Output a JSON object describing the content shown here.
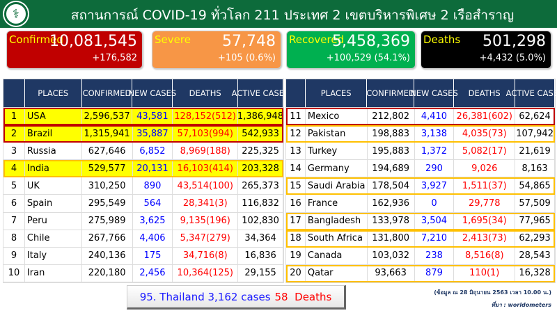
{
  "header": {
    "title": "สถานการณ์ COVID-19 ทั่วโลก 211 ประเทศ 2 เขตบริหารพิเศษ 2 เรือสำราญ",
    "logo_icon": "ministry-of-public-health-logo"
  },
  "cards": [
    {
      "label": "Confirmed",
      "value": "10,081,545",
      "change": "+176,582",
      "color": "#c00000"
    },
    {
      "label": "Severe",
      "value": "57,748",
      "change": "+105 (0.6%)",
      "color": "#f79646"
    },
    {
      "label": "Recovered",
      "value": "5,458,369",
      "change": "+100,529 (54.1%)",
      "color": "#00b050"
    },
    {
      "label": "Deaths",
      "value": "501,298",
      "change": "+4,432 (5.0%)",
      "color": "#000000"
    }
  ],
  "columns": [
    "PLACES",
    "CONFIRMED",
    "NEW CASES",
    "DEATHS",
    "ACTIVE CASES"
  ],
  "left_rows": [
    [
      "1",
      "USA",
      "2,596,537",
      "43,581",
      "128,152(512)",
      "1,386,948"
    ],
    [
      "2",
      "Brazil",
      "1,315,941",
      "35,887",
      "57,103(994)",
      "542,933"
    ],
    [
      "3",
      "Russia",
      "627,646",
      "6,852",
      "8,969(188)",
      "225,325"
    ],
    [
      "4",
      "India",
      "529,577",
      "20,131",
      "16,103(414)",
      "203,328"
    ],
    [
      "5",
      "UK",
      "310,250",
      "890",
      "43,514(100)",
      "265,373"
    ],
    [
      "6",
      "Spain",
      "295,549",
      "564",
      "28,341(3)",
      "116,832"
    ],
    [
      "7",
      "Peru",
      "275,989",
      "3,625",
      "9,135(196)",
      "102,830"
    ],
    [
      "8",
      "Chile",
      "267,766",
      "4,406",
      "5,347(279)",
      "34,364"
    ],
    [
      "9",
      "Italy",
      "240,136",
      "175",
      "34,716(8)",
      "16,836"
    ],
    [
      "10",
      "Iran",
      "220,180",
      "2,456",
      "10,364(125)",
      "29,155"
    ]
  ],
  "right_rows": [
    [
      "11",
      "Mexico",
      "212,802",
      "4,410",
      "26,381(602)",
      "62,624"
    ],
    [
      "12",
      "Pakistan",
      "198,883",
      "3,138",
      "4,035(73)",
      "107,942"
    ],
    [
      "13",
      "Turkey",
      "195,883",
      "1,372",
      "5,082(17)",
      "21,619"
    ],
    [
      "14",
      "Germany",
      "194,689",
      "290",
      "9,026",
      "8,163"
    ],
    [
      "15",
      "Saudi Arabia",
      "178,504",
      "3,927",
      "1,511(37)",
      "54,865"
    ],
    [
      "16",
      "France",
      "162,936",
      "0",
      "29,778",
      "57,509"
    ],
    [
      "17",
      "Bangladesh",
      "133,978",
      "3,504",
      "1,695(34)",
      "77,965"
    ],
    [
      "18",
      "South Africa",
      "131,800",
      "7,210",
      "2,413(73)",
      "62,293"
    ],
    [
      "19",
      "Canada",
      "103,032",
      "238",
      "8,516(8)",
      "28,543"
    ],
    [
      "20",
      "Qatar",
      "93,663",
      "879",
      "110(1)",
      "16,328"
    ]
  ],
  "thailand": {
    "cases_text": "95. Thailand 3,162 cases",
    "deaths_text": "58  Deaths"
  },
  "note": {
    "date": "(ข้อมูล ณ 28 มิถุนายน 2563 เวลา 10.00 น.)",
    "source": "ที่มา : worldometers"
  }
}
